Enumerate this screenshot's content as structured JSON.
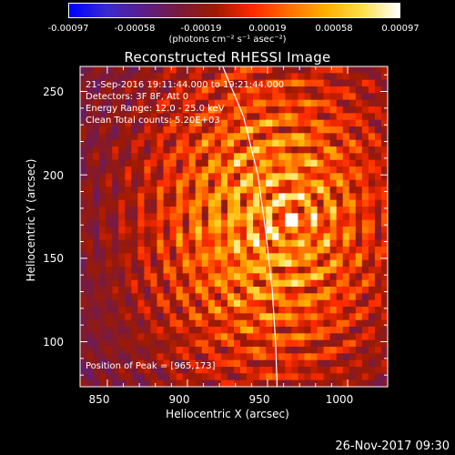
{
  "colors": {
    "colormap": [
      "#0000ff",
      "#3a2bd0",
      "#5a1e8c",
      "#7a1a3a",
      "#a01a00",
      "#ff2a00",
      "#ff7000",
      "#ffb000",
      "#ffe04a",
      "#ffffff"
    ]
  },
  "chart_data": {
    "type": "heatmap",
    "title": "Reconstructed RHESSI Image",
    "xlabel": "Heliocentric X (arcsec)",
    "ylabel": "Heliocentric Y (arcsec)",
    "xlim": [
      833,
      1025
    ],
    "ylim": [
      73,
      265
    ],
    "x_ticks": [
      850,
      900,
      950,
      1000
    ],
    "y_ticks": [
      100,
      150,
      200,
      250
    ],
    "colorbar": {
      "range": [
        -0.00097,
        0.00097
      ],
      "tick_labels": [
        "-0.00097",
        "-0.00058",
        "-0.00019",
        "0.00019",
        "0.00058",
        "0.00097"
      ],
      "units": "(photons cm⁻² s⁻¹ asec⁻²)"
    },
    "annotations": {
      "time_range": "21-Sep-2016 19:11:44.000 to 19:21:44.000",
      "detectors": "Detectors: 3F 8F, Att 0",
      "energy": "Energy Range: 12.0 - 25.0 keV",
      "clean": "Clean     Total counts: 5.20E+03",
      "peak": "Position of Peak = [965,173]"
    },
    "peak": [
      965,
      173
    ],
    "limb_curve": [
      [
        922,
        265
      ],
      [
        935,
        235
      ],
      [
        944,
        200
      ],
      [
        949,
        165
      ],
      [
        953,
        130
      ],
      [
        955,
        100
      ],
      [
        956,
        73
      ]
    ]
  },
  "footer": {
    "timestamp": "26-Nov-2017 09:30"
  }
}
